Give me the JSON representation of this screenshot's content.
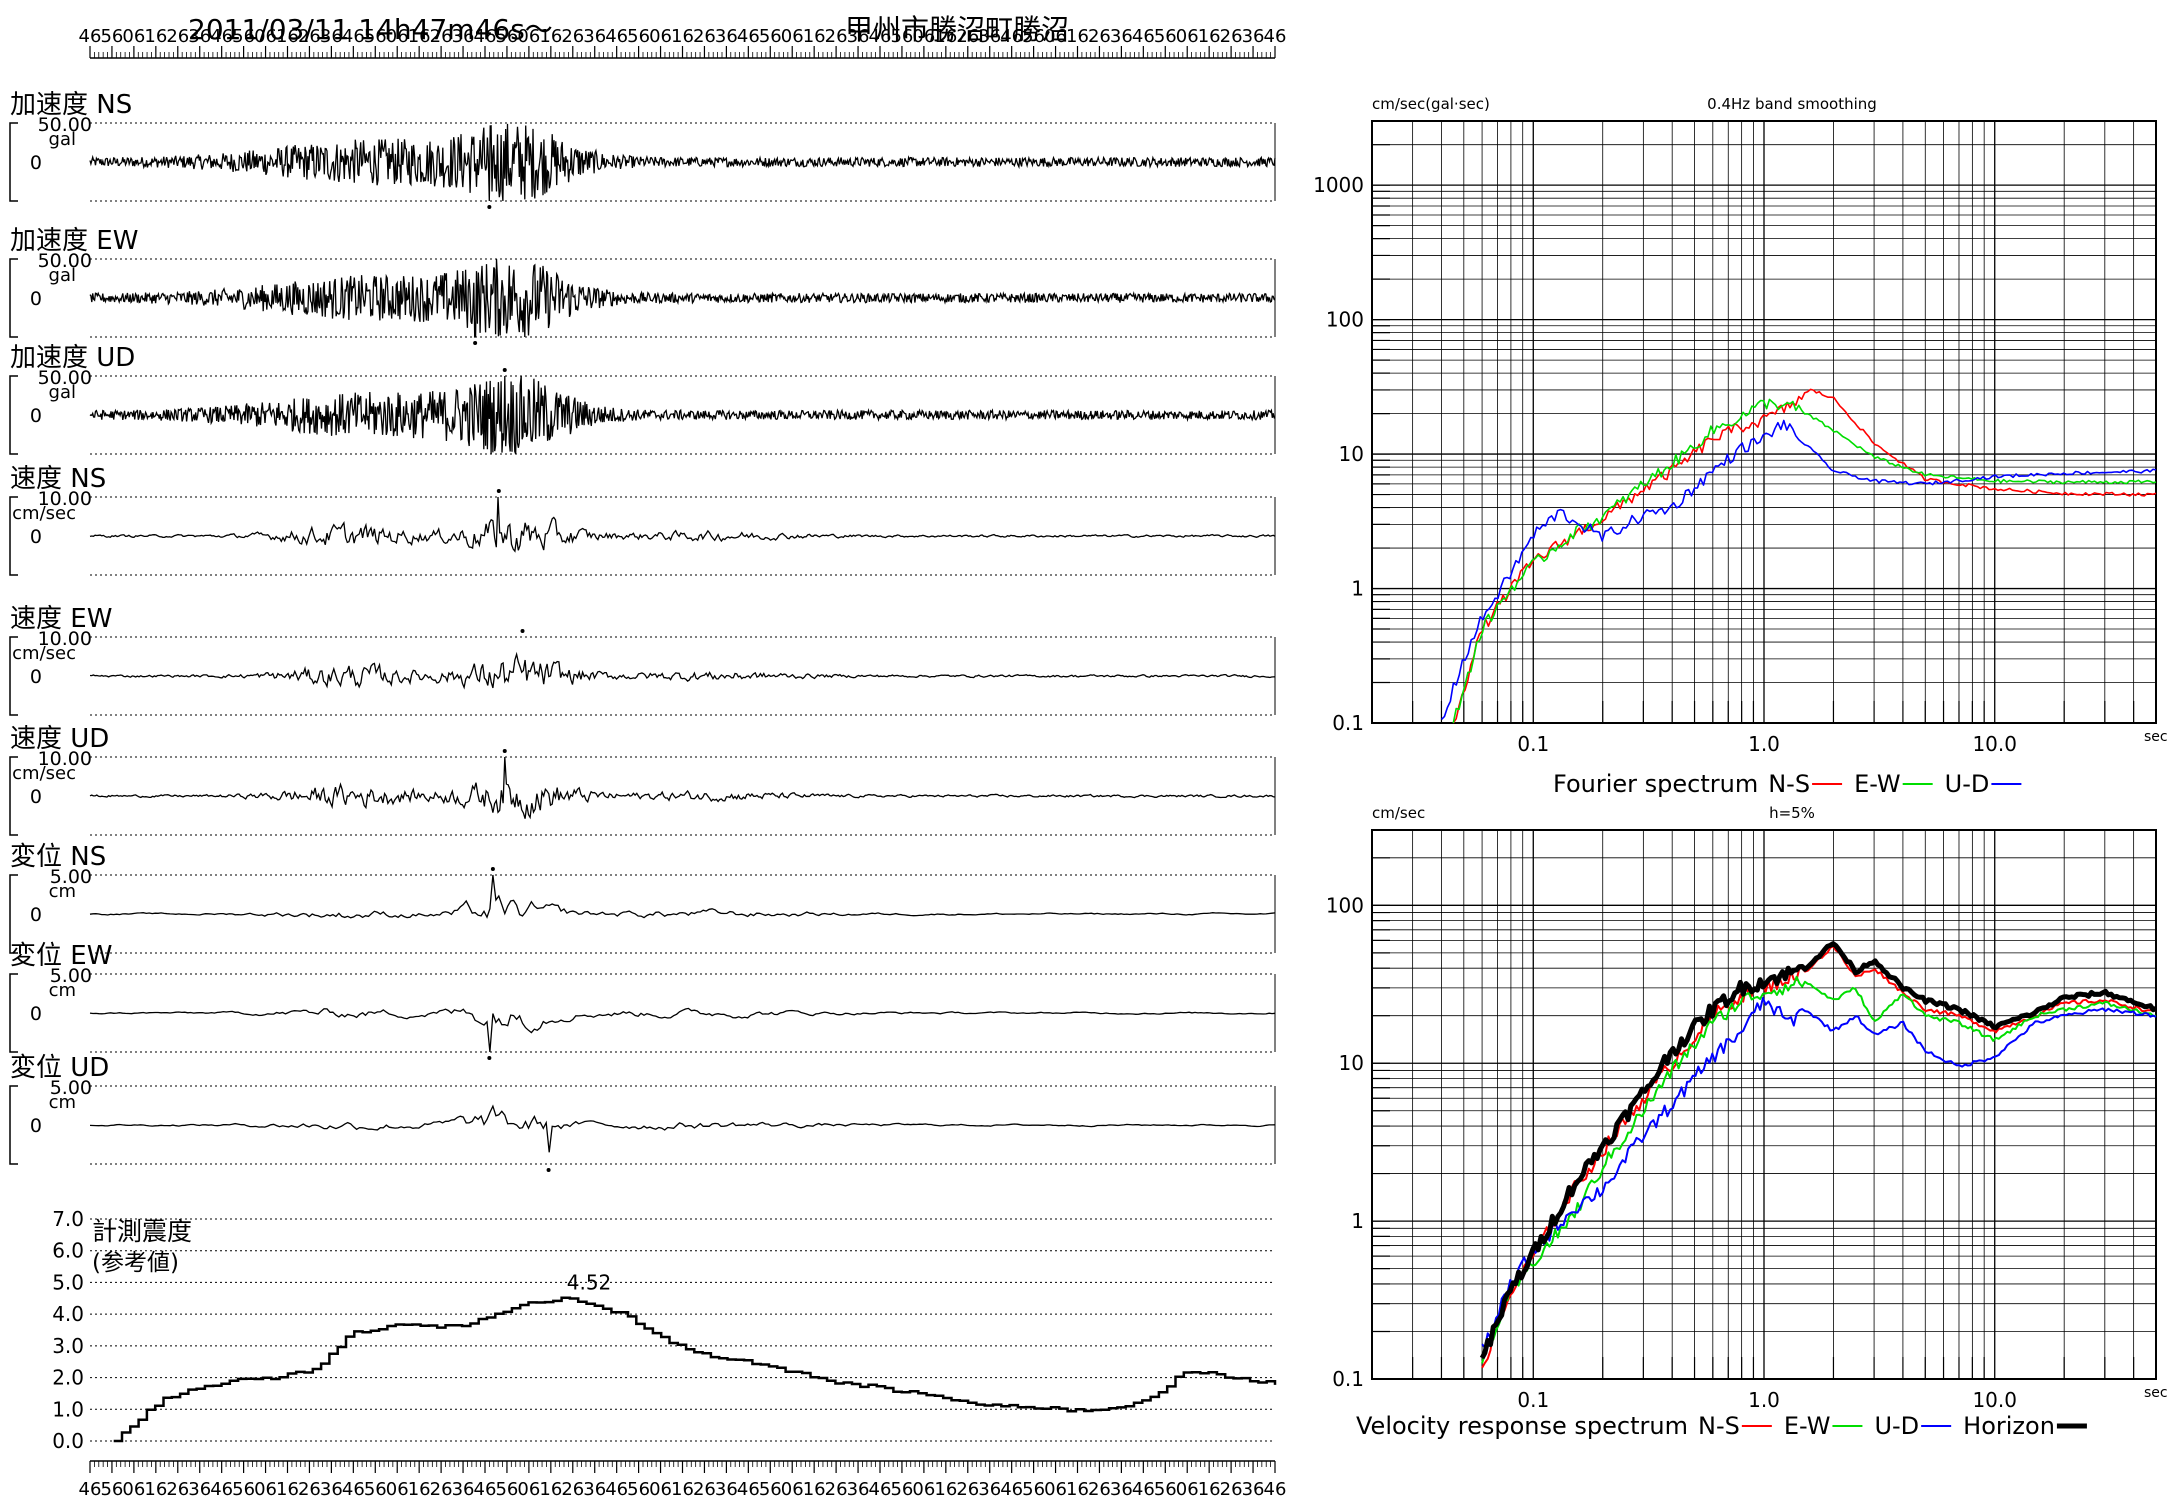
{
  "header": {
    "datetime": "2011/03/11  14h47m46s〜",
    "station": "甲州市勝沼町勝沼"
  },
  "time_tick_labels": [
    "46",
    "56",
    "06",
    "16",
    "26",
    "36",
    "46",
    "56",
    "06",
    "16",
    "26",
    "36",
    "46",
    "56",
    "06",
    "16",
    "26",
    "36",
    "46",
    "56",
    "06",
    "16",
    "26",
    "36",
    "46",
    "56",
    "06",
    "16",
    "26",
    "36",
    "46",
    "56",
    "06",
    "16",
    "26",
    "36",
    "46",
    "56",
    "06",
    "16",
    "26",
    "36",
    "46",
    "56",
    "06",
    "16",
    "26",
    "36",
    "46",
    "56",
    "06",
    "16",
    "26",
    "36",
    "46"
  ],
  "waveform_panels": [
    {
      "label": "加速度 NS",
      "scale": "50.00",
      "unit": "gal",
      "zero": "0",
      "type": "acc",
      "peak": 1.0,
      "peak_at": 0.337,
      "peak_sign": -1
    },
    {
      "label": "加速度 EW",
      "scale": "50.00",
      "unit": "gal",
      "zero": "0",
      "type": "acc",
      "peak": 1.0,
      "peak_at": 0.325,
      "peak_sign": -1
    },
    {
      "label": "加速度 UD",
      "scale": "50.00",
      "unit": "gal",
      "zero": "0",
      "type": "acc",
      "peak": 1.0,
      "peak_at": 0.35,
      "peak_sign": 1
    },
    {
      "label": "速度 NS",
      "scale": "10.00",
      "unit": "cm/sec",
      "zero": "0",
      "type": "vel",
      "peak": 1.0,
      "peak_at": 0.345,
      "peak_sign": 1
    },
    {
      "label": "速度 EW",
      "scale": "10.00",
      "unit": "cm/sec",
      "zero": "0",
      "type": "vel",
      "peak": 1.0,
      "peak_at": 0.365,
      "peak_sign": 1
    },
    {
      "label": "速度 UD",
      "scale": "10.00",
      "unit": "cm/sec",
      "zero": "0",
      "type": "vel",
      "peak": 1.0,
      "peak_at": 0.35,
      "peak_sign": 1
    },
    {
      "label": "変位 NS",
      "scale": "5.00",
      "unit": "cm",
      "zero": "0",
      "type": "disp",
      "peak": 1.0,
      "peak_at": 0.34,
      "peak_sign": 1
    },
    {
      "label": "変位 EW",
      "scale": "5.00",
      "unit": "cm",
      "zero": "0",
      "type": "disp",
      "peak": 1.0,
      "peak_at": 0.337,
      "peak_sign": -1
    },
    {
      "label": "変位 UD",
      "scale": "5.00",
      "unit": "cm",
      "zero": "0",
      "type": "disp",
      "peak": 0.7,
      "peak_at": 0.387,
      "peak_sign": -1
    }
  ],
  "intensity_panel": {
    "label_line1": "計測震度",
    "label_line2": "(参考値)",
    "y_ticks": [
      "7.0",
      "6.0",
      "5.0",
      "4.0",
      "3.0",
      "2.0",
      "1.0",
      "0.0"
    ],
    "max_label": "4.52",
    "max_value": 4.52
  },
  "chart_data": [
    {
      "type": "line",
      "title": "Fourier spectrum",
      "top_note": "0.4Hz band smoothing",
      "ylabel": "cm/sec(gal·sec)",
      "xlabel": "sec",
      "xscale": "log",
      "yscale": "log",
      "xlim": [
        0.02,
        50
      ],
      "ylim": [
        0.1,
        3000
      ],
      "x_tick_labels": [
        "0.1",
        "1.0",
        "10.0"
      ],
      "y_tick_labels": [
        "0.1",
        "1",
        "10",
        "100",
        "1000"
      ],
      "legend": "bottom",
      "legend_prefix": "Fourier spectrum",
      "series": [
        {
          "name": "N-S",
          "color": "#ff0000",
          "points": [
            [
              0.045,
              0.1
            ],
            [
              0.06,
              0.5
            ],
            [
              0.08,
              1.0
            ],
            [
              0.1,
              1.6
            ],
            [
              0.15,
              2.5
            ],
            [
              0.2,
              3.3
            ],
            [
              0.3,
              5.5
            ],
            [
              0.4,
              7.5
            ],
            [
              0.6,
              13
            ],
            [
              0.8,
              16
            ],
            [
              1.0,
              18
            ],
            [
              1.3,
              23
            ],
            [
              1.6,
              30
            ],
            [
              2.0,
              26
            ],
            [
              3.0,
              12
            ],
            [
              5.0,
              6.5
            ],
            [
              10,
              5.5
            ],
            [
              20,
              5.1
            ],
            [
              50,
              5.0
            ]
          ]
        },
        {
          "name": "E-W",
          "color": "#00dd00",
          "points": [
            [
              0.045,
              0.1
            ],
            [
              0.06,
              0.5
            ],
            [
              0.08,
              1.0
            ],
            [
              0.1,
              1.5
            ],
            [
              0.15,
              2.6
            ],
            [
              0.2,
              3.4
            ],
            [
              0.3,
              6.0
            ],
            [
              0.4,
              8.5
            ],
            [
              0.6,
              15
            ],
            [
              0.8,
              19
            ],
            [
              1.0,
              24
            ],
            [
              1.3,
              23
            ],
            [
              1.6,
              19
            ],
            [
              2.0,
              15
            ],
            [
              3.0,
              9.5
            ],
            [
              5.0,
              7.0
            ],
            [
              10,
              6.3
            ],
            [
              20,
              6.2
            ],
            [
              50,
              6.2
            ]
          ]
        },
        {
          "name": "U-D",
          "color": "#0000ff",
          "points": [
            [
              0.04,
              0.1
            ],
            [
              0.05,
              0.3
            ],
            [
              0.06,
              0.6
            ],
            [
              0.08,
              1.3
            ],
            [
              0.1,
              2.5
            ],
            [
              0.13,
              3.7
            ],
            [
              0.2,
              2.4
            ],
            [
              0.3,
              3.5
            ],
            [
              0.4,
              4.0
            ],
            [
              0.6,
              7.5
            ],
            [
              0.8,
              11
            ],
            [
              1.0,
              13
            ],
            [
              1.2,
              17
            ],
            [
              1.5,
              12
            ],
            [
              2.0,
              7.5
            ],
            [
              3.0,
              6.3
            ],
            [
              5.0,
              6.0
            ],
            [
              10,
              6.8
            ],
            [
              20,
              7.2
            ],
            [
              50,
              7.5
            ]
          ]
        }
      ]
    },
    {
      "type": "line",
      "title": "Velocity response spectrum",
      "top_note": "h=5%",
      "ylabel": "cm/sec",
      "xlabel": "sec",
      "xscale": "log",
      "yscale": "log",
      "xlim": [
        0.02,
        50
      ],
      "ylim": [
        0.1,
        300
      ],
      "x_tick_labels": [
        "0.1",
        "1.0",
        "10.0"
      ],
      "y_tick_labels": [
        "0.1",
        "1",
        "10",
        "100"
      ],
      "legend": "bottom",
      "legend_prefix": "Velocity response spectrum",
      "series": [
        {
          "name": "N-S",
          "color": "#ff0000",
          "width": 2,
          "points": [
            [
              0.06,
              0.12
            ],
            [
              0.08,
              0.35
            ],
            [
              0.1,
              0.6
            ],
            [
              0.15,
              1.6
            ],
            [
              0.2,
              2.8
            ],
            [
              0.3,
              6
            ],
            [
              0.4,
              10
            ],
            [
              0.6,
              20
            ],
            [
              0.8,
              27
            ],
            [
              1.0,
              30
            ],
            [
              1.5,
              38
            ],
            [
              2.0,
              55
            ],
            [
              2.5,
              35
            ],
            [
              3.0,
              40
            ],
            [
              4.0,
              28
            ],
            [
              5.0,
              22
            ],
            [
              7.0,
              20
            ],
            [
              10,
              16
            ],
            [
              15,
              20
            ],
            [
              20,
              24
            ],
            [
              30,
              25
            ],
            [
              50,
              21
            ]
          ]
        },
        {
          "name": "E-W",
          "color": "#00dd00",
          "width": 2,
          "points": [
            [
              0.06,
              0.13
            ],
            [
              0.08,
              0.35
            ],
            [
              0.1,
              0.55
            ],
            [
              0.15,
              1.1
            ],
            [
              0.2,
              2.2
            ],
            [
              0.3,
              5
            ],
            [
              0.4,
              9
            ],
            [
              0.6,
              18
            ],
            [
              0.8,
              25
            ],
            [
              1.0,
              28
            ],
            [
              1.5,
              33
            ],
            [
              2.0,
              25
            ],
            [
              2.5,
              30
            ],
            [
              3.0,
              18
            ],
            [
              4.0,
              28
            ],
            [
              5.0,
              20
            ],
            [
              7.0,
              18
            ],
            [
              10,
              14
            ],
            [
              15,
              20
            ],
            [
              20,
              22
            ],
            [
              30,
              24
            ],
            [
              50,
              20
            ]
          ]
        },
        {
          "name": "U-D",
          "color": "#0000ff",
          "width": 2,
          "points": [
            [
              0.06,
              0.15
            ],
            [
              0.08,
              0.4
            ],
            [
              0.1,
              0.65
            ],
            [
              0.15,
              1.2
            ],
            [
              0.2,
              1.6
            ],
            [
              0.3,
              3.5
            ],
            [
              0.4,
              5.5
            ],
            [
              0.6,
              11
            ],
            [
              0.8,
              16
            ],
            [
              1.0,
              25
            ],
            [
              1.3,
              18
            ],
            [
              1.5,
              22
            ],
            [
              2.0,
              16
            ],
            [
              2.5,
              20
            ],
            [
              3.0,
              15
            ],
            [
              4.0,
              18
            ],
            [
              5.0,
              12
            ],
            [
              7.0,
              9.5
            ],
            [
              10,
              11
            ],
            [
              15,
              18
            ],
            [
              20,
              20
            ],
            [
              30,
              22
            ],
            [
              50,
              20
            ]
          ]
        },
        {
          "name": "Horizon",
          "color": "#000000",
          "width": 5,
          "points": [
            [
              0.06,
              0.13
            ],
            [
              0.08,
              0.37
            ],
            [
              0.1,
              0.62
            ],
            [
              0.15,
              1.7
            ],
            [
              0.2,
              3.0
            ],
            [
              0.3,
              6.5
            ],
            [
              0.4,
              12
            ],
            [
              0.6,
              22
            ],
            [
              0.8,
              30
            ],
            [
              1.0,
              33
            ],
            [
              1.5,
              40
            ],
            [
              2.0,
              58
            ],
            [
              2.5,
              38
            ],
            [
              3.0,
              45
            ],
            [
              4.0,
              30
            ],
            [
              5.0,
              25
            ],
            [
              7.0,
              22
            ],
            [
              10,
              17
            ],
            [
              15,
              21
            ],
            [
              20,
              26
            ],
            [
              30,
              28
            ],
            [
              50,
              22
            ]
          ]
        }
      ]
    }
  ]
}
